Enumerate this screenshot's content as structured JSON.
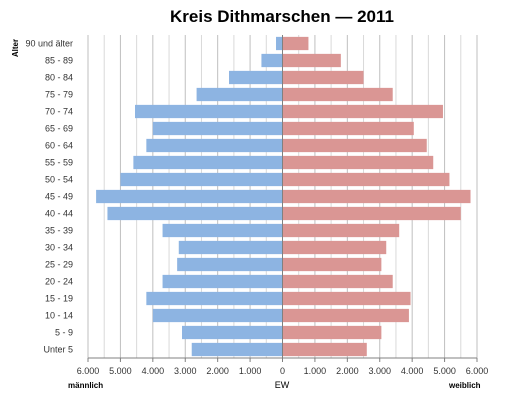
{
  "chart_data": {
    "type": "bar",
    "title": "Kreis Dithmarschen — 2011",
    "ylabel": "Alter",
    "xlabel": "EW",
    "left_label": "männlich",
    "right_label": "weiblich",
    "categories": [
      "90 und älter",
      "85 - 89",
      "80 - 84",
      "75 - 79",
      "70 - 74",
      "65 - 69",
      "60 - 64",
      "55 - 59",
      "50 - 54",
      "45 - 49",
      "40 - 44",
      "35 - 39",
      "30 - 34",
      "25 - 29",
      "20 - 24",
      "15 - 19",
      "10 - 14",
      "5 - 9",
      "Unter 5"
    ],
    "series": [
      {
        "name": "männlich",
        "values": [
          200,
          650,
          1650,
          2650,
          4550,
          4000,
          4200,
          4600,
          5000,
          5750,
          5400,
          3700,
          3200,
          3250,
          3700,
          4200,
          4000,
          3100,
          2800
        ]
      },
      {
        "name": "weiblich",
        "values": [
          800,
          1800,
          2500,
          3400,
          4950,
          4050,
          4450,
          4650,
          5150,
          5800,
          5500,
          3600,
          3200,
          3050,
          3400,
          3950,
          3900,
          3050,
          2600
        ]
      }
    ],
    "xlim": [
      -6000,
      6000
    ],
    "xticks": [
      "6.000",
      "5.000",
      "4.000",
      "3.000",
      "2.000",
      "1.000",
      "0",
      "1.000",
      "2.000",
      "3.000",
      "4.000",
      "5.000",
      "6.000"
    ],
    "grid": true,
    "colors": {
      "male": "#8db4e2",
      "female": "#da9694",
      "grid": "#bfbfbf",
      "axis": "#808080"
    }
  }
}
